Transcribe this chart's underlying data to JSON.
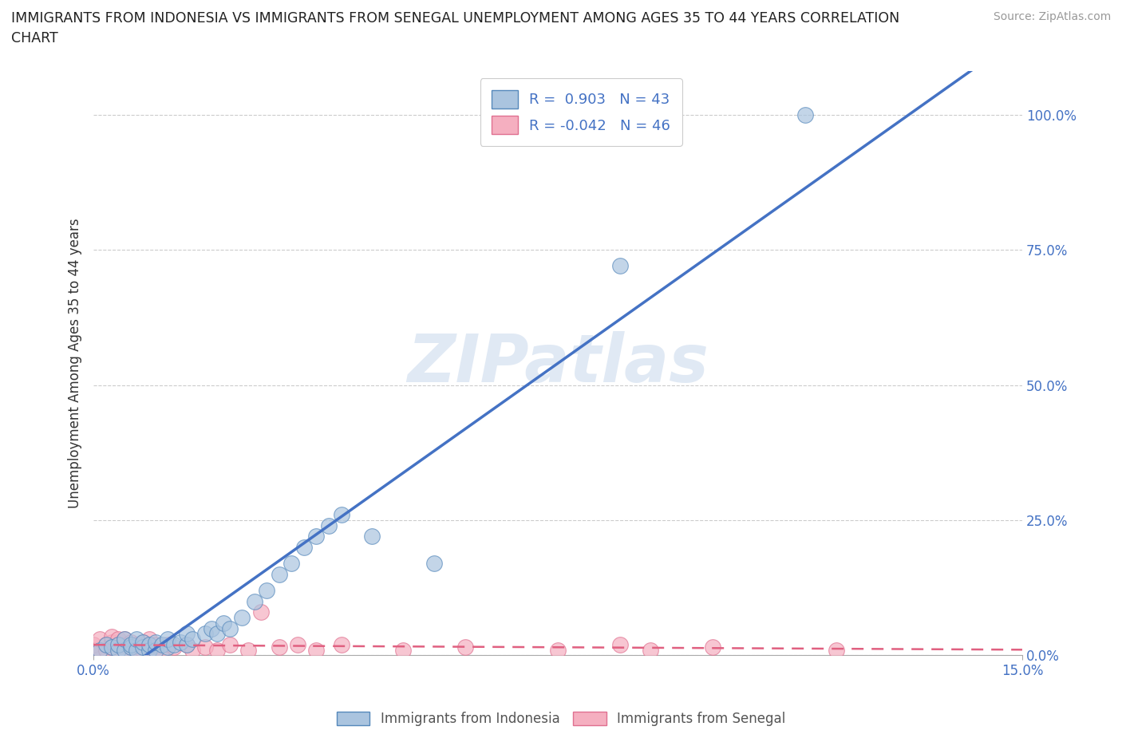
{
  "title_line1": "IMMIGRANTS FROM INDONESIA VS IMMIGRANTS FROM SENEGAL UNEMPLOYMENT AMONG AGES 35 TO 44 YEARS CORRELATION",
  "title_line2": "CHART",
  "source": "Source: ZipAtlas.com",
  "ylabel": "Unemployment Among Ages 35 to 44 years",
  "xlim": [
    0.0,
    0.15
  ],
  "ylim": [
    0.0,
    1.08
  ],
  "x_tick_pos": [
    0.0,
    0.15
  ],
  "x_tick_labels": [
    "0.0%",
    "15.0%"
  ],
  "y_tick_pos": [
    0.0,
    0.25,
    0.5,
    0.75,
    1.0
  ],
  "y_tick_labels": [
    "0.0%",
    "25.0%",
    "50.0%",
    "75.0%",
    "100.0%"
  ],
  "indonesia_color": "#aac4df",
  "senegal_color": "#f5afc0",
  "indonesia_edge": "#5588bb",
  "senegal_edge": "#e07090",
  "line_indonesia": "#4472c4",
  "line_senegal": "#e06080",
  "R_indonesia": 0.903,
  "N_indonesia": 43,
  "R_senegal": -0.042,
  "N_senegal": 46,
  "legend_indonesia": "Immigrants from Indonesia",
  "legend_senegal": "Immigrants from Senegal",
  "watermark": "ZIPatlas",
  "background_color": "#ffffff",
  "grid_color": "#cccccc",
  "indonesia_scatter_x": [
    0.001,
    0.002,
    0.003,
    0.004,
    0.004,
    0.005,
    0.005,
    0.006,
    0.006,
    0.007,
    0.007,
    0.008,
    0.008,
    0.009,
    0.009,
    0.01,
    0.01,
    0.011,
    0.012,
    0.012,
    0.013,
    0.014,
    0.015,
    0.015,
    0.016,
    0.018,
    0.019,
    0.02,
    0.021,
    0.022,
    0.024,
    0.026,
    0.028,
    0.03,
    0.032,
    0.034,
    0.036,
    0.038,
    0.04,
    0.045,
    0.055,
    0.085,
    0.115
  ],
  "indonesia_scatter_y": [
    0.01,
    0.02,
    0.015,
    0.01,
    0.02,
    0.01,
    0.03,
    0.015,
    0.02,
    0.01,
    0.03,
    0.015,
    0.025,
    0.01,
    0.02,
    0.01,
    0.025,
    0.02,
    0.015,
    0.03,
    0.02,
    0.025,
    0.02,
    0.04,
    0.03,
    0.04,
    0.05,
    0.04,
    0.06,
    0.05,
    0.07,
    0.1,
    0.12,
    0.15,
    0.17,
    0.2,
    0.22,
    0.24,
    0.26,
    0.22,
    0.17,
    0.72,
    1.0
  ],
  "senegal_scatter_x": [
    0.0,
    0.0,
    0.001,
    0.001,
    0.002,
    0.002,
    0.003,
    0.003,
    0.003,
    0.004,
    0.004,
    0.004,
    0.005,
    0.005,
    0.005,
    0.006,
    0.006,
    0.007,
    0.007,
    0.008,
    0.008,
    0.009,
    0.009,
    0.01,
    0.01,
    0.011,
    0.012,
    0.013,
    0.015,
    0.016,
    0.018,
    0.02,
    0.022,
    0.025,
    0.027,
    0.03,
    0.033,
    0.036,
    0.04,
    0.05,
    0.06,
    0.075,
    0.085,
    0.09,
    0.1,
    0.12
  ],
  "senegal_scatter_y": [
    0.01,
    0.02,
    0.01,
    0.03,
    0.01,
    0.02,
    0.015,
    0.025,
    0.035,
    0.01,
    0.02,
    0.03,
    0.01,
    0.02,
    0.03,
    0.015,
    0.025,
    0.01,
    0.02,
    0.01,
    0.025,
    0.015,
    0.03,
    0.01,
    0.02,
    0.01,
    0.02,
    0.015,
    0.02,
    0.01,
    0.015,
    0.01,
    0.02,
    0.01,
    0.08,
    0.015,
    0.02,
    0.01,
    0.02,
    0.01,
    0.015,
    0.01,
    0.02,
    0.01,
    0.015,
    0.01
  ]
}
